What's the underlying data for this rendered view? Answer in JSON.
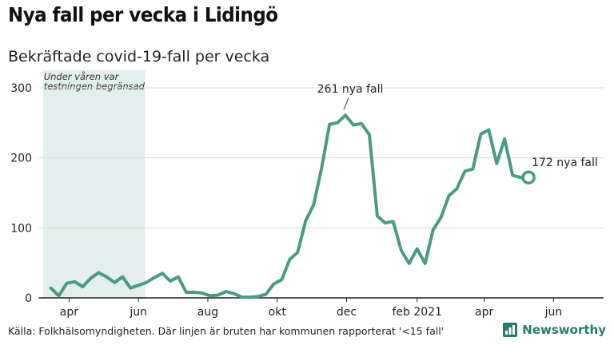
{
  "header": {
    "title": "Nya fall per vecka i Lidingö",
    "subtitle": "Bekräftade covid-19-fall per vecka"
  },
  "footer": {
    "source": "Källa: Folkhälsomyndigheten. Där linjen är bruten har kommunen rapporterat '<15 fall'",
    "brand": "Newsworthy"
  },
  "colors": {
    "line": "#4a9a85",
    "shade": "#e3efec",
    "axis": "#222222",
    "grid": "#d9d9d9",
    "brand": "#2b7a6a"
  },
  "chart_data": {
    "type": "line",
    "title": "Nya fall per vecka i Lidingö",
    "subtitle": "Bekräftade covid-19-fall per vecka",
    "ylim": [
      0,
      300
    ],
    "xlim": [
      "2020-03-05",
      "2021-07-15"
    ],
    "yticks": [
      0,
      100,
      200,
      300
    ],
    "xticks": [
      {
        "date": "2020-04-01",
        "label": "apr"
      },
      {
        "date": "2020-06-01",
        "label": "jun"
      },
      {
        "date": "2020-08-01",
        "label": "aug"
      },
      {
        "date": "2020-10-01",
        "label": "okt"
      },
      {
        "date": "2020-12-01",
        "label": "dec"
      },
      {
        "date": "2021-02-01",
        "label": "feb 2021"
      },
      {
        "date": "2021-04-01",
        "label": "apr"
      },
      {
        "date": "2021-06-01",
        "label": "jun"
      }
    ],
    "shaded_region": {
      "start": "2020-03-09",
      "end": "2020-06-07",
      "label_lines": [
        "Under våren var",
        "testningen begränsad"
      ]
    },
    "series": [
      {
        "x": [
          "2020-03-16",
          "2020-03-23",
          "2020-03-30",
          "2020-04-06",
          "2020-04-13",
          "2020-04-20",
          "2020-04-27",
          "2020-05-04",
          "2020-05-11",
          "2020-05-18",
          "2020-05-25",
          "2020-06-01",
          "2020-06-08",
          "2020-06-15",
          "2020-06-22",
          "2020-06-29",
          "2020-07-06",
          "2020-07-13",
          "2020-07-20",
          "2020-07-27",
          "2020-08-03",
          "2020-08-10",
          "2020-08-17",
          "2020-08-24",
          "2020-08-31",
          "2020-09-07",
          "2020-09-14",
          "2020-09-21",
          "2020-09-28",
          "2020-10-05",
          "2020-10-12",
          "2020-10-19",
          "2020-10-26",
          "2020-11-02",
          "2020-11-09",
          "2020-11-16",
          "2020-11-23",
          "2020-11-30",
          "2020-12-07",
          "2020-12-14",
          "2020-12-21",
          "2020-12-28",
          "2021-01-04",
          "2021-01-11",
          "2021-01-18",
          "2021-01-25",
          "2021-02-01",
          "2021-02-08",
          "2021-02-15",
          "2021-02-22",
          "2021-03-01",
          "2021-03-08",
          "2021-03-15",
          "2021-03-22",
          "2021-03-29",
          "2021-04-05",
          "2021-04-12",
          "2021-04-19",
          "2021-04-26",
          "2021-05-03",
          "2021-05-10"
        ],
        "values": [
          14,
          3,
          21,
          23,
          16,
          28,
          36,
          30,
          22,
          30,
          14,
          18,
          22,
          29,
          35,
          24,
          30,
          8,
          8,
          7,
          3,
          4,
          9,
          6,
          1,
          1,
          2,
          5,
          20,
          26,
          55,
          65,
          110,
          133,
          185,
          248,
          250,
          261,
          247,
          249,
          233,
          117,
          107,
          109,
          68,
          49,
          70,
          49,
          97,
          115,
          146,
          156,
          181,
          184,
          234,
          240,
          192,
          227,
          175,
          172,
          172
        ],
        "end_marker": true
      }
    ],
    "annotations": [
      {
        "date": "2020-11-30",
        "value": 261,
        "text": "261 nya fall"
      },
      {
        "date": "2021-05-10",
        "value": 172,
        "text": "172 nya fall"
      }
    ]
  }
}
